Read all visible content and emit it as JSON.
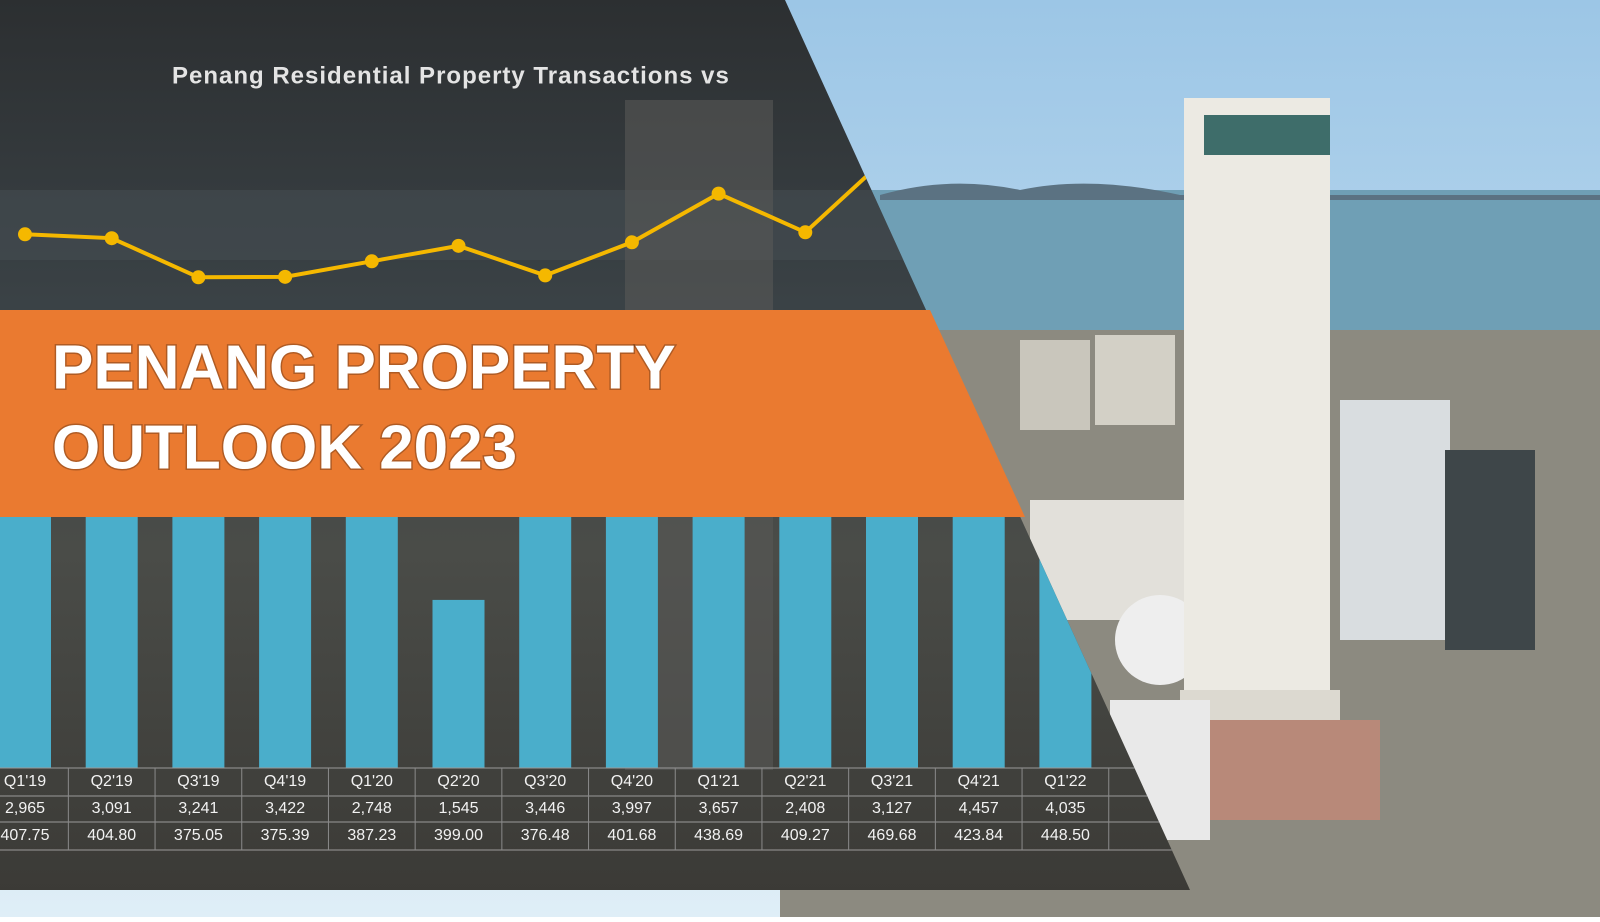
{
  "banner": {
    "title_lines": [
      "PENANG PROPERTY",
      "OUTLOOK 2023"
    ]
  },
  "chart_data": {
    "type": "bar",
    "title": "Penang Residential Property Transactions vs",
    "categories": [
      "Q1'19",
      "Q2'19",
      "Q3'19",
      "Q4'19",
      "Q1'20",
      "Q2'20",
      "Q3'20",
      "Q4'20",
      "Q1'21",
      "Q2'21",
      "Q3'21",
      "Q4'21",
      "Q1'22"
    ],
    "ylim": [
      0,
      5000
    ],
    "y2lim": [
      300,
      500
    ],
    "series": [
      {
        "type": "bar",
        "color": "#4aaecb",
        "values": [
          2965,
          3091,
          3241,
          3422,
          2748,
          1545,
          3446,
          3997,
          3657,
          2408,
          3127,
          4457,
          4035
        ],
        "value_labels": [
          "2,965",
          "3,091",
          "3,241",
          "3,422",
          "2,748",
          "1,545",
          "3,446",
          "3,997",
          "3,657",
          "2,408",
          "3,127",
          "4,457",
          "4,035"
        ]
      },
      {
        "type": "line",
        "axis": "y2",
        "color": "#f5b800",
        "values": [
          407.75,
          404.8,
          375.05,
          375.39,
          387.23,
          399.0,
          376.48,
          401.68,
          438.69,
          409.27,
          469.68,
          423.84,
          448.5
        ],
        "value_labels": [
          "407.75",
          "404.80",
          "375.05",
          "375.39",
          "387.23",
          "399.00",
          "376.48",
          "401.68",
          "438.69",
          "409.27",
          "469.68",
          "423.84",
          "448.50"
        ]
      }
    ]
  }
}
